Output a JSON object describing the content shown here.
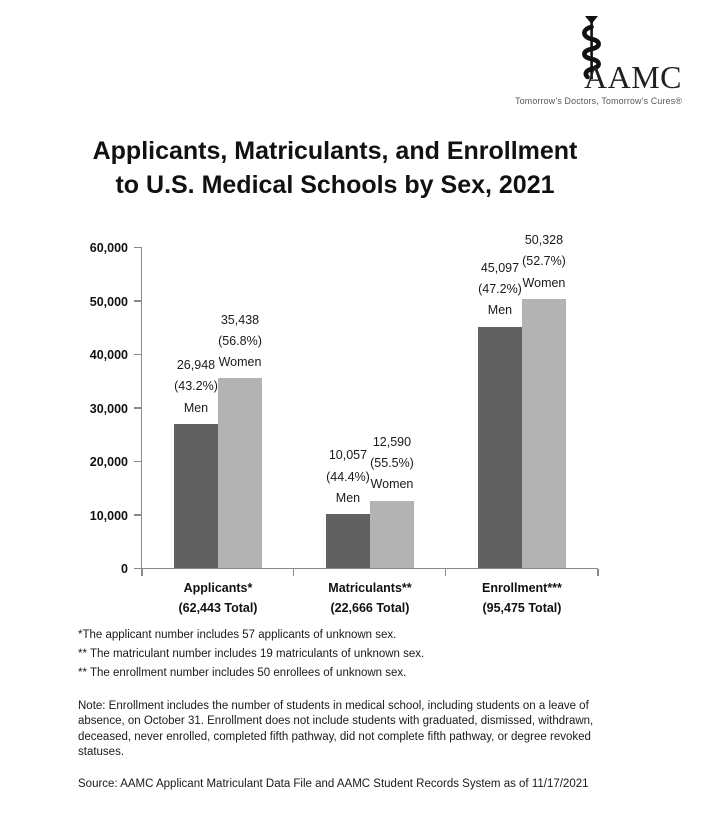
{
  "logo": {
    "brand": "AAMC",
    "tagline": "Tomorrow’s Doctors, Tomorrow’s Cures®",
    "symbol": "rod-of-asclepius"
  },
  "title": {
    "line1": "Applicants, Matriculants, and Enrollment",
    "line2": "to U.S. Medical Schools by Sex, 2021"
  },
  "footnotes": [
    "*The applicant number includes 57 applicants of unknown sex.",
    "** The matriculant number includes 19 matriculants of unknown sex.",
    "** The enrollment number includes 50 enrollees of unknown sex."
  ],
  "note": "Note: Enrollment includes the number of students in medical school, including students on a leave of absence, on October 31. Enrollment does not include students with graduated, dismissed, withdrawn, deceased, never enrolled, completed fifth pathway, did not complete fifth pathway, or degree revoked statuses.",
  "source": "Source: AAMC Applicant Matriculant Data File and AAMC Student Records System as of 11/17/2021",
  "chart_data": {
    "type": "bar",
    "title": "Applicants, Matriculants, and Enrollment to U.S. Medical Schools by Sex, 2021",
    "categories": [
      "Applicants*",
      "Matriculants**",
      "Enrollment***"
    ],
    "category_totals": [
      "(62,443 Total)",
      "(22,666 Total)",
      "(95,475 Total)"
    ],
    "series": [
      {
        "name": "Men",
        "color": "#616161",
        "values": [
          26948,
          10057,
          45097
        ],
        "percents": [
          "43.2%",
          "44.4%",
          "47.2%"
        ]
      },
      {
        "name": "Women",
        "color": "#b3b3b3",
        "values": [
          35438,
          12590,
          50328
        ],
        "percents": [
          "56.8%",
          "55.5%",
          "52.7%"
        ]
      }
    ],
    "ylim": [
      0,
      60000
    ],
    "yticks": [
      "0",
      "10,000",
      "20,000",
      "30,000",
      "40,000",
      "50,000",
      "60,000"
    ],
    "grid": false,
    "legend_position": "none",
    "bar_label_format": "value (percent) series-name above each bar",
    "axis_color": "#8a8a8a"
  }
}
